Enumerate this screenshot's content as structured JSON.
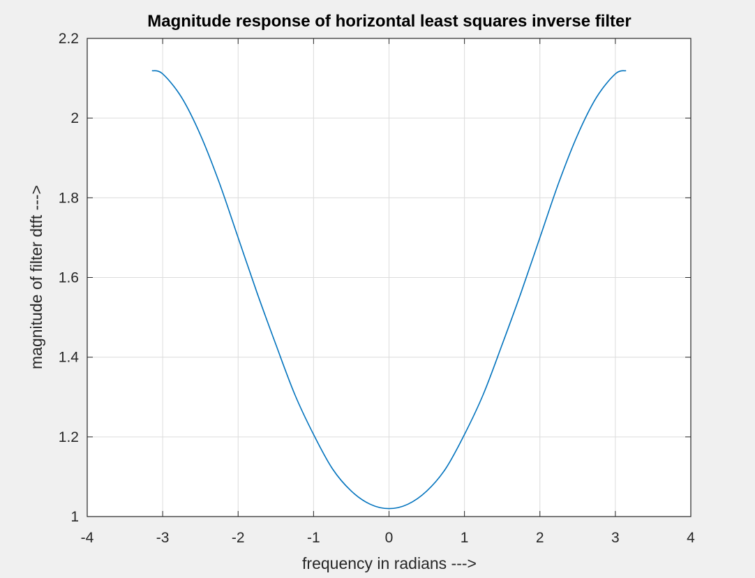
{
  "chart_data": {
    "type": "line",
    "title": "Magnitude response of horizontal least squares inverse filter",
    "xlabel": "frequency in radians --->",
    "ylabel": "magnitude of filter dtft  --->",
    "xlim": [
      -4,
      4
    ],
    "ylim": [
      1,
      2.2
    ],
    "xticks": [
      "-4",
      "-3",
      "-2",
      "-1",
      "0",
      "1",
      "2",
      "3",
      "4"
    ],
    "yticks": [
      "1",
      "1.2",
      "1.4",
      "1.6",
      "1.8",
      "2",
      "2.2"
    ],
    "grid": true,
    "line_color": "#0072bd",
    "series": [
      {
        "x": [
          -3.1416,
          -3.0,
          -2.75,
          -2.5,
          -2.25,
          -2.0,
          -1.75,
          -1.5,
          -1.25,
          -1.0,
          -0.75,
          -0.5,
          -0.25,
          0.0,
          0.25,
          0.5,
          0.75,
          1.0,
          1.25,
          1.5,
          1.75,
          2.0,
          2.25,
          2.5,
          2.75,
          3.0,
          3.1416
        ],
        "y": [
          2.119,
          2.111,
          2.052,
          1.958,
          1.838,
          1.7,
          1.562,
          1.432,
          1.307,
          1.206,
          1.12,
          1.064,
          1.031,
          1.02,
          1.031,
          1.064,
          1.12,
          1.206,
          1.307,
          1.432,
          1.562,
          1.7,
          1.838,
          1.958,
          2.052,
          2.111,
          2.119
        ]
      }
    ]
  }
}
